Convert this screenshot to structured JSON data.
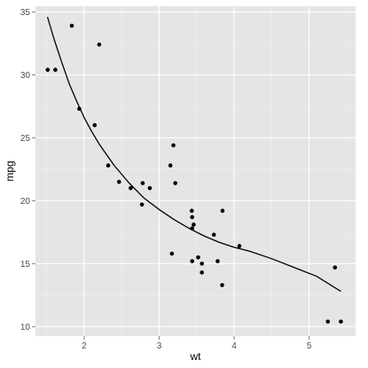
{
  "chart_data": {
    "type": "scatter",
    "xlabel": "wt",
    "ylabel": "mpg",
    "xlim": [
      1.35,
      5.62
    ],
    "ylim": [
      9.25,
      35.45
    ],
    "x_ticks": [
      2,
      3,
      4,
      5
    ],
    "y_ticks": [
      10,
      15,
      20,
      25,
      30,
      35
    ],
    "x_tick_labels": [
      "2",
      "3",
      "4",
      "5"
    ],
    "y_tick_labels": [
      "10",
      "15",
      "20",
      "25",
      "30",
      "35"
    ],
    "grid": true,
    "colors": {
      "panel_bg": "#e5e5e5",
      "grid_major": "#ffffff",
      "grid_minor": "#f2f2f2",
      "point": "#000000",
      "line": "#000000"
    },
    "series": [
      {
        "type": "scatter",
        "points": [
          [
            1.513,
            30.4
          ],
          [
            1.615,
            30.4
          ],
          [
            1.835,
            33.9
          ],
          [
            1.935,
            27.3
          ],
          [
            2.14,
            26.0
          ],
          [
            2.2,
            32.4
          ],
          [
            2.32,
            22.8
          ],
          [
            2.465,
            21.5
          ],
          [
            2.62,
            21.0
          ],
          [
            2.77,
            19.7
          ],
          [
            2.78,
            21.4
          ],
          [
            2.875,
            21.0
          ],
          [
            3.15,
            22.8
          ],
          [
            3.17,
            15.8
          ],
          [
            3.19,
            24.4
          ],
          [
            3.215,
            21.4
          ],
          [
            3.435,
            19.2
          ],
          [
            3.44,
            18.7
          ],
          [
            3.44,
            17.8
          ],
          [
            3.44,
            15.2
          ],
          [
            3.46,
            18.1
          ],
          [
            3.52,
            15.5
          ],
          [
            3.57,
            14.3
          ],
          [
            3.57,
            15.0
          ],
          [
            3.73,
            17.3
          ],
          [
            3.78,
            15.2
          ],
          [
            3.84,
            13.3
          ],
          [
            3.845,
            19.2
          ],
          [
            4.07,
            16.4
          ],
          [
            5.25,
            10.4
          ],
          [
            5.345,
            14.7
          ],
          [
            5.424,
            10.4
          ]
        ]
      },
      {
        "type": "line",
        "points": [
          [
            1.51,
            34.6
          ],
          [
            1.6,
            32.8
          ],
          [
            1.7,
            31.0
          ],
          [
            1.8,
            29.3
          ],
          [
            1.9,
            27.9
          ],
          [
            2.0,
            26.6
          ],
          [
            2.1,
            25.5
          ],
          [
            2.2,
            24.5
          ],
          [
            2.4,
            22.8
          ],
          [
            2.6,
            21.4
          ],
          [
            2.8,
            20.2
          ],
          [
            3.0,
            19.3
          ],
          [
            3.2,
            18.5
          ],
          [
            3.4,
            17.8
          ],
          [
            3.6,
            17.2
          ],
          [
            3.8,
            16.7
          ],
          [
            4.0,
            16.3
          ],
          [
            4.2,
            16.0
          ],
          [
            4.5,
            15.4
          ],
          [
            4.8,
            14.7
          ],
          [
            5.1,
            14.0
          ],
          [
            5.424,
            12.8
          ]
        ]
      }
    ]
  }
}
